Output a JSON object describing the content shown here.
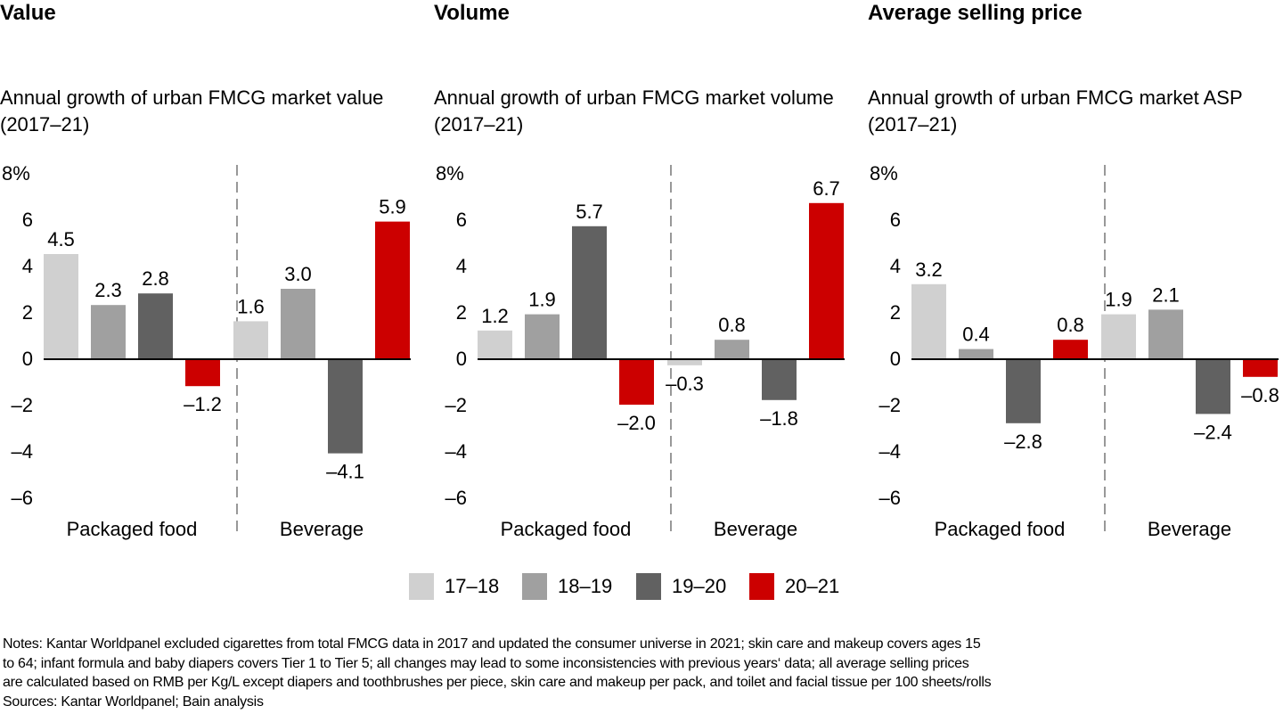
{
  "colors": {
    "s1718": "#d0d0d0",
    "s1819": "#a0a0a0",
    "s1920": "#616161",
    "s2021": "#cc0000",
    "axis": "#000000",
    "divider": "#555555"
  },
  "panels": [
    {
      "title": "Value",
      "subtitle": "Annual growth of urban FMCG market value (2017–21)"
    },
    {
      "title": "Volume",
      "subtitle": "Annual growth of urban FMCG market volume (2017–21)"
    },
    {
      "title": "Average selling price",
      "subtitle": "Annual growth of urban FMCG market ASP (2017–21)"
    }
  ],
  "legend": [
    {
      "label": "17–18",
      "color_key": "s1718"
    },
    {
      "label": "18–19",
      "color_key": "s1819"
    },
    {
      "label": "19–20",
      "color_key": "s1920"
    },
    {
      "label": "20–21",
      "color_key": "s2021"
    }
  ],
  "notes": {
    "lines": [
      "Notes: Kantar Worldpanel excluded cigarettes from total FMCG data in 2017 and updated the consumer universe in 2021; skin care and makeup covers ages 15",
      "to 64; infant formula and baby diapers covers Tier 1 to Tier 5; all changes may lead to some inconsistencies with previous years‘ data; all average selling prices",
      "are calculated based on RMB per Kg/L except diapers and toothbrushes per piece, skin care and makeup per pack, and toilet and facial tissue per 100 sheets/rolls",
      "Sources: Kantar Worldpanel; Bain analysis"
    ]
  },
  "chart_data": [
    {
      "type": "bar",
      "title": "Value",
      "subtitle": "Annual growth of urban FMCG market value (2017–21)",
      "xlabel": "",
      "ylabel": "",
      "ylim": [
        -6,
        8
      ],
      "yticks": [
        8,
        6,
        4,
        2,
        0,
        -2,
        -4,
        -6
      ],
      "ytick_labels": [
        "8%",
        "6",
        "4",
        "2",
        "0",
        "–2",
        "–4",
        "–6"
      ],
      "grid": false,
      "legend_position": "bottom-center",
      "categories": [
        "Packaged food",
        "Beverage"
      ],
      "series": [
        {
          "name": "17–18",
          "values": [
            4.5,
            1.6
          ],
          "labels": [
            "4.5",
            "1.6"
          ]
        },
        {
          "name": "18–19",
          "values": [
            2.3,
            3.0
          ],
          "labels": [
            "2.3",
            "3.0"
          ]
        },
        {
          "name": "19–20",
          "values": [
            2.8,
            -4.1
          ],
          "labels": [
            "2.8",
            "–4.1"
          ]
        },
        {
          "name": "20–21",
          "values": [
            -1.2,
            5.9
          ],
          "labels": [
            "–1.2",
            "5.9"
          ]
        }
      ]
    },
    {
      "type": "bar",
      "title": "Volume",
      "subtitle": "Annual growth of urban FMCG market volume (2017–21)",
      "xlabel": "",
      "ylabel": "",
      "ylim": [
        -6,
        8
      ],
      "yticks": [
        8,
        6,
        4,
        2,
        0,
        -2,
        -4,
        -6
      ],
      "ytick_labels": [
        "8%",
        "6",
        "4",
        "2",
        "0",
        "–2",
        "–4",
        "–6"
      ],
      "grid": false,
      "legend_position": "bottom-center",
      "categories": [
        "Packaged food",
        "Beverage"
      ],
      "series": [
        {
          "name": "17–18",
          "values": [
            1.2,
            -0.3
          ],
          "labels": [
            "1.2",
            "–0.3"
          ]
        },
        {
          "name": "18–19",
          "values": [
            1.9,
            0.8
          ],
          "labels": [
            "1.9",
            "0.8"
          ]
        },
        {
          "name": "19–20",
          "values": [
            5.7,
            -1.8
          ],
          "labels": [
            "5.7",
            "–1.8"
          ]
        },
        {
          "name": "20–21",
          "values": [
            -2.0,
            6.7
          ],
          "labels": [
            "–2.0",
            "6.7"
          ]
        }
      ]
    },
    {
      "type": "bar",
      "title": "Average selling price",
      "subtitle": "Annual growth of urban FMCG market ASP (2017–21)",
      "xlabel": "",
      "ylabel": "",
      "ylim": [
        -6,
        8
      ],
      "yticks": [
        8,
        6,
        4,
        2,
        0,
        -2,
        -4,
        -6
      ],
      "ytick_labels": [
        "8%",
        "6",
        "4",
        "2",
        "0",
        "–2",
        "–4",
        "–6"
      ],
      "grid": false,
      "legend_position": "bottom-center",
      "categories": [
        "Packaged food",
        "Beverage"
      ],
      "series": [
        {
          "name": "17–18",
          "values": [
            3.2,
            1.9
          ],
          "labels": [
            "3.2",
            "1.9"
          ]
        },
        {
          "name": "18–19",
          "values": [
            0.4,
            2.1
          ],
          "labels": [
            "0.4",
            "2.1"
          ]
        },
        {
          "name": "19–20",
          "values": [
            -2.8,
            -2.4
          ],
          "labels": [
            "–2.8",
            "–2.4"
          ]
        },
        {
          "name": "20–21",
          "values": [
            0.8,
            -0.8
          ],
          "labels": [
            "0.8",
            "–0.8"
          ]
        }
      ]
    }
  ]
}
